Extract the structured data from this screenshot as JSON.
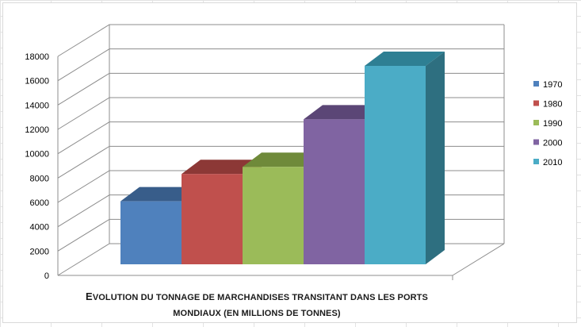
{
  "chart_data": {
    "type": "bar",
    "categories": [
      "1970",
      "1980",
      "1990",
      "2000",
      "2010"
    ],
    "values": [
      5300,
      7600,
      8200,
      12200,
      16700
    ],
    "title_line1": "Evolution du tonnage de marchandises transitant dans les ports",
    "title_line2": "mondiaux (en millions de tonnes)",
    "ylim": [
      0,
      18000
    ],
    "yticks": [
      0,
      2000,
      4000,
      6000,
      8000,
      10000,
      12000,
      14000,
      16000,
      18000
    ],
    "legend": [
      "1970",
      "1980",
      "1990",
      "2000",
      "2010"
    ],
    "legend_position": "right",
    "grid": true,
    "colors": [
      "#4f81bd",
      "#c0504d",
      "#9bbb59",
      "#8064a2",
      "#4bacc6"
    ],
    "colors_side": [
      "#3a6190",
      "#903c39",
      "#74903f",
      "#5f4b7a",
      "#2e6f80"
    ],
    "colors_top": [
      "#385d8a",
      "#8c3836",
      "#6f8a3a",
      "#5b4676",
      "#2e7f93"
    ]
  }
}
